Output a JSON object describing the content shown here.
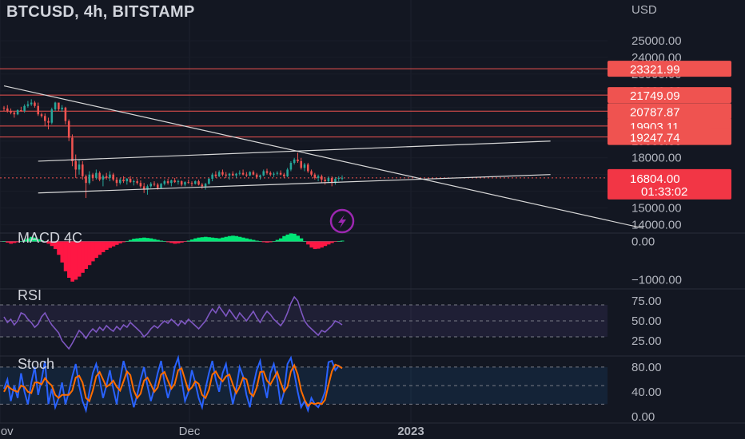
{
  "header": {
    "title": "BTCUSD, 4h, BITSTAMP"
  },
  "colors": {
    "background": "#131722",
    "up": "#26a69a",
    "down": "#ef5350",
    "level_line": "#ef5350",
    "trendline": "#d8d8d8",
    "rsi": "#7e57c2",
    "stoch_k": "#2962ff",
    "stoch_d": "#ff6d00",
    "macd_up": "#00e676",
    "macd_down": "#ff1744",
    "lightning": "#9c27b0"
  },
  "icons": {
    "alert": "lightning-icon"
  },
  "chart_data": [
    {
      "type": "candlestick",
      "name": "price",
      "ylabel": "USD",
      "ylim": [
        13600,
        26000
      ],
      "x_ticks": [
        "Nov",
        "Dec",
        "2023"
      ],
      "y_ticks": [
        14000,
        15000,
        16000,
        17000,
        18000,
        19000,
        20000,
        21000,
        22000,
        23000,
        24000,
        25000
      ],
      "price_levels": [
        {
          "value": "23321.99"
        },
        {
          "value": "21749.09"
        },
        {
          "value": "20787.87"
        },
        {
          "value": "19903.11"
        },
        {
          "value": "19247.74"
        }
      ],
      "last_price": {
        "value": "16804.00",
        "countdown": "01:33:02"
      },
      "candles": [
        [
          21000,
          21100,
          20800,
          20950
        ],
        [
          20950,
          21150,
          20700,
          20800
        ],
        [
          20800,
          20950,
          20600,
          20700
        ],
        [
          20700,
          20800,
          20400,
          20600
        ],
        [
          20600,
          20900,
          20550,
          20850
        ],
        [
          20850,
          21050,
          20750,
          20800
        ],
        [
          20800,
          21200,
          20700,
          21100
        ],
        [
          21100,
          21400,
          21000,
          21200
        ],
        [
          21200,
          21500,
          21100,
          21300
        ],
        [
          21300,
          21400,
          21000,
          21100
        ],
        [
          21100,
          21300,
          20500,
          20600
        ],
        [
          20600,
          20700,
          20400,
          20500
        ],
        [
          20500,
          20650,
          19900,
          20200
        ],
        [
          20200,
          20400,
          19700,
          20100
        ],
        [
          20100,
          21000,
          20000,
          20900
        ],
        [
          20900,
          21350,
          20800,
          21300
        ],
        [
          21300,
          21200,
          20800,
          20900
        ],
        [
          20900,
          21150,
          20750,
          21000
        ],
        [
          21000,
          21050,
          20000,
          20200
        ],
        [
          20200,
          20300,
          19000,
          19200
        ],
        [
          19200,
          19400,
          17500,
          17800
        ],
        [
          17800,
          18200,
          16800,
          17300
        ],
        [
          17300,
          17900,
          17000,
          17600
        ],
        [
          17600,
          17800,
          16700,
          16900
        ],
        [
          16900,
          17000,
          15600,
          16500
        ],
        [
          16500,
          17200,
          16400,
          17000
        ],
        [
          17000,
          17100,
          16600,
          16800
        ],
        [
          16800,
          17300,
          16700,
          17100
        ],
        [
          17100,
          17200,
          16600,
          16700
        ],
        [
          16700,
          17000,
          16300,
          16900
        ],
        [
          16900,
          17100,
          16700,
          16800
        ],
        [
          16800,
          17200,
          16600,
          17000
        ],
        [
          17000,
          17100,
          16600,
          16700
        ],
        [
          16700,
          16800,
          16300,
          16500
        ],
        [
          16500,
          16800,
          16400,
          16700
        ],
        [
          16700,
          16900,
          16500,
          16600
        ],
        [
          16600,
          16800,
          16400,
          16750
        ],
        [
          16750,
          16900,
          16500,
          16550
        ],
        [
          16550,
          16700,
          16350,
          16600
        ],
        [
          16600,
          16750,
          16400,
          16500
        ],
        [
          16500,
          16650,
          16200,
          16300
        ],
        [
          16300,
          16500,
          15900,
          16100
        ],
        [
          16100,
          16400,
          15800,
          16300
        ],
        [
          16300,
          16550,
          16200,
          16450
        ],
        [
          16450,
          16600,
          16300,
          16400
        ],
        [
          16400,
          16500,
          16100,
          16200
        ],
        [
          16200,
          16500,
          16150,
          16450
        ],
        [
          16450,
          16700,
          16350,
          16600
        ],
        [
          16600,
          16750,
          16400,
          16500
        ],
        [
          16500,
          16700,
          16300,
          16650
        ],
        [
          16650,
          16800,
          16500,
          16550
        ],
        [
          16550,
          16700,
          16400,
          16600
        ],
        [
          16600,
          16650,
          16300,
          16400
        ],
        [
          16400,
          16600,
          16300,
          16550
        ],
        [
          16550,
          16700,
          16450,
          16500
        ],
        [
          16500,
          16600,
          16300,
          16450
        ],
        [
          16450,
          16650,
          16400,
          16600
        ],
        [
          16600,
          16700,
          16350,
          16400
        ],
        [
          16400,
          16500,
          16150,
          16300
        ],
        [
          16300,
          16500,
          16100,
          16450
        ],
        [
          16450,
          16800,
          16400,
          16750
        ],
        [
          16750,
          17100,
          16600,
          17000
        ],
        [
          17000,
          17200,
          16800,
          16900
        ],
        [
          16900,
          17250,
          16850,
          17150
        ],
        [
          17150,
          17300,
          16900,
          17000
        ],
        [
          17000,
          17150,
          16800,
          16950
        ],
        [
          16950,
          17100,
          16700,
          17050
        ],
        [
          17050,
          17200,
          16900,
          16950
        ],
        [
          16950,
          17100,
          16800,
          17050
        ],
        [
          17050,
          17250,
          16950,
          17100
        ],
        [
          17100,
          17300,
          16950,
          17000
        ],
        [
          17000,
          17150,
          16850,
          16950
        ],
        [
          16950,
          17200,
          16900,
          17150
        ],
        [
          17150,
          17250,
          16950,
          17000
        ],
        [
          17000,
          17100,
          16750,
          16850
        ],
        [
          16850,
          17000,
          16700,
          16950
        ],
        [
          16950,
          17300,
          16900,
          17200
        ],
        [
          17200,
          17350,
          17000,
          17100
        ],
        [
          17100,
          17200,
          16900,
          17000
        ],
        [
          17000,
          17150,
          16850,
          17050
        ],
        [
          17050,
          17200,
          16950,
          17100
        ],
        [
          17100,
          17250,
          16950,
          17000
        ],
        [
          17000,
          17100,
          16800,
          16900
        ],
        [
          16900,
          17400,
          16850,
          17300
        ],
        [
          17300,
          17800,
          17200,
          17700
        ],
        [
          17700,
          18000,
          17600,
          17900
        ],
        [
          17900,
          18300,
          17700,
          17800
        ],
        [
          17800,
          18000,
          17300,
          17400
        ],
        [
          17400,
          17700,
          17200,
          17600
        ],
        [
          17600,
          17700,
          17100,
          17200
        ],
        [
          17200,
          17300,
          16900,
          17000
        ],
        [
          17000,
          17100,
          16700,
          16800
        ],
        [
          16800,
          17000,
          16600,
          16900
        ],
        [
          16900,
          17000,
          16500,
          16700
        ],
        [
          16700,
          16850,
          16400,
          16600
        ],
        [
          16600,
          16900,
          16500,
          16800
        ],
        [
          16800,
          16900,
          16300,
          16500
        ],
        [
          16500,
          16850,
          16400,
          16750
        ],
        [
          16750,
          16900,
          16600,
          16800
        ],
        [
          16800,
          16950,
          16650,
          16804
        ]
      ],
      "trendlines": [
        {
          "from": [
            0,
            22300
          ],
          "to": [
            187,
            13800
          ]
        },
        {
          "from": [
            10,
            17800
          ],
          "to": [
            160,
            19000
          ]
        },
        {
          "from": [
            10,
            15900
          ],
          "to": [
            160,
            17000
          ]
        }
      ]
    },
    {
      "type": "histogram",
      "name": "MACD 4C",
      "ylim": [
        -1200,
        260
      ],
      "y_ticks": [
        "0.00",
        "−1000.00"
      ],
      "values": [
        0,
        -30,
        -60,
        -40,
        -20,
        0,
        40,
        80,
        120,
        100,
        60,
        30,
        -20,
        -60,
        -120,
        -200,
        -350,
        -550,
        -780,
        -950,
        -1050,
        -1000,
        -920,
        -820,
        -720,
        -620,
        -520,
        -430,
        -350,
        -280,
        -220,
        -170,
        -130,
        -90,
        -50,
        -20,
        10,
        40,
        70,
        80,
        90,
        100,
        90,
        80,
        60,
        40,
        20,
        0,
        -20,
        -40,
        -60,
        -50,
        -30,
        -10,
        20,
        50,
        80,
        100,
        110,
        120,
        110,
        100,
        90,
        80,
        100,
        120,
        140,
        150,
        140,
        120,
        100,
        80,
        60,
        40,
        20,
        0,
        -20,
        -30,
        -20,
        0,
        40,
        80,
        140,
        180,
        210,
        200,
        150,
        80,
        0,
        -80,
        -160,
        -200,
        -190,
        -160,
        -120,
        -80,
        -40,
        -10,
        10,
        20
      ]
    },
    {
      "type": "line",
      "name": "RSI",
      "ylim": [
        12,
        90
      ],
      "y_ticks": [
        "75.00",
        "50.00",
        "25.00"
      ],
      "band": [
        30,
        70
      ],
      "values": [
        55,
        48,
        52,
        45,
        50,
        60,
        58,
        52,
        48,
        42,
        46,
        55,
        60,
        52,
        45,
        40,
        35,
        25,
        20,
        15,
        22,
        30,
        38,
        34,
        28,
        35,
        40,
        36,
        42,
        38,
        44,
        40,
        37,
        43,
        39,
        45,
        42,
        48,
        44,
        40,
        36,
        30,
        34,
        40,
        44,
        41,
        46,
        50,
        47,
        52,
        48,
        44,
        50,
        46,
        52,
        48,
        44,
        40,
        45,
        50,
        58,
        65,
        60,
        68,
        62,
        56,
        64,
        58,
        52,
        60,
        55,
        50,
        56,
        62,
        54,
        48,
        56,
        62,
        58,
        52,
        48,
        44,
        50,
        60,
        72,
        80,
        75,
        62,
        50,
        44,
        40,
        36,
        32,
        38,
        36,
        40,
        44,
        50,
        48,
        45
      ]
    },
    {
      "type": "line",
      "name": "Stoch",
      "ylim": [
        -8,
        98
      ],
      "y_ticks": [
        "80.00",
        "40.00",
        "0.00"
      ],
      "band": [
        20,
        80
      ],
      "series": [
        {
          "name": "%K",
          "values": [
            45,
            60,
            25,
            50,
            30,
            70,
            40,
            20,
            55,
            80,
            35,
            60,
            90,
            20,
            45,
            15,
            30,
            55,
            20,
            40,
            65,
            85,
            50,
            25,
            10,
            40,
            70,
            85,
            60,
            30,
            50,
            75,
            45,
            20,
            60,
            90,
            70,
            40,
            15,
            35,
            60,
            80,
            50,
            25,
            45,
            70,
            90,
            55,
            30,
            50,
            80,
            95,
            60,
            25,
            40,
            75,
            55,
            30,
            15,
            45,
            70,
            90,
            60,
            40,
            70,
            85,
            50,
            20,
            45,
            80,
            65,
            35,
            15,
            50,
            75,
            90,
            55,
            30,
            70,
            85,
            60,
            20,
            40,
            85,
            95,
            70,
            40,
            15,
            25,
            10,
            30,
            20,
            15,
            25,
            40,
            88,
            90,
            75,
            82,
            78
          ]
        },
        {
          "name": "%D",
          "values": [
            40,
            50,
            45,
            42,
            40,
            50,
            48,
            40,
            38,
            55,
            55,
            52,
            62,
            55,
            50,
            35,
            30,
            35,
            35,
            35,
            42,
            63,
            66,
            55,
            30,
            25,
            42,
            65,
            72,
            60,
            48,
            52,
            58,
            48,
            42,
            57,
            73,
            67,
            42,
            30,
            37,
            58,
            63,
            52,
            40,
            47,
            68,
            72,
            58,
            45,
            53,
            75,
            78,
            60,
            42,
            47,
            57,
            53,
            35,
            30,
            43,
            68,
            73,
            63,
            57,
            65,
            68,
            52,
            38,
            48,
            63,
            60,
            38,
            33,
            47,
            72,
            73,
            58,
            52,
            62,
            72,
            55,
            40,
            48,
            73,
            83,
            68,
            42,
            27,
            17,
            22,
            20,
            22,
            20,
            27,
            51,
            73,
            84,
            82,
            78
          ]
        }
      ]
    }
  ]
}
